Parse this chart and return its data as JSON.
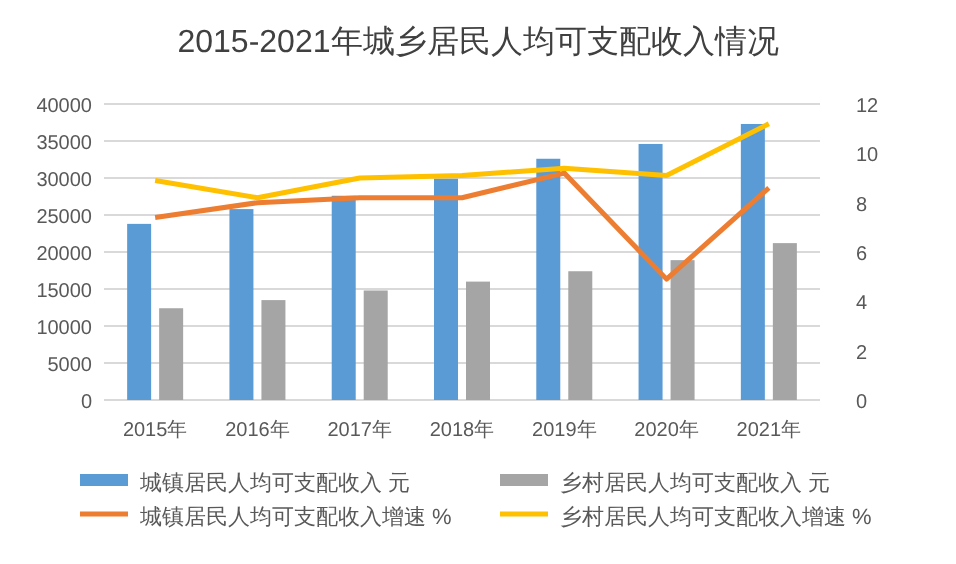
{
  "chart_data": {
    "type": "bar",
    "title": "2015-2021年城乡居民人均可支配收入情况",
    "categories": [
      "2015年",
      "2016年",
      "2017年",
      "2018年",
      "2019年",
      "2020年",
      "2021年"
    ],
    "series": [
      {
        "name": "城镇居民人均可支配收入 元",
        "color": "#5b9bd5",
        "values": [
          23800,
          25800,
          27600,
          29900,
          32600,
          34600,
          37300
        ]
      },
      {
        "name": "乡村居民人均可支配收入 元",
        "color": "#a5a5a5",
        "values": [
          12400,
          13500,
          14800,
          16000,
          17400,
          18900,
          21200
        ]
      },
      {
        "name": "城镇居民人均可支配收入增速 %",
        "type": "line",
        "axis": "y2",
        "color": "#ed7d31",
        "values": [
          7.4,
          8.0,
          8.2,
          8.2,
          9.2,
          4.9,
          8.6
        ]
      },
      {
        "name": "乡村居民人均可支配收入增速 %",
        "type": "line",
        "axis": "y2",
        "color": "#ffc000",
        "values": [
          8.9,
          8.2,
          9.0,
          9.1,
          9.4,
          9.1,
          11.2
        ]
      }
    ],
    "ylim": [
      0,
      40000
    ],
    "yticks": [
      0,
      5000,
      10000,
      15000,
      20000,
      25000,
      30000,
      35000,
      40000
    ],
    "y2lim": [
      0,
      12
    ],
    "y2ticks": [
      0,
      2,
      4,
      6,
      8,
      10,
      12
    ],
    "grid": "y",
    "legend": "bottom"
  }
}
